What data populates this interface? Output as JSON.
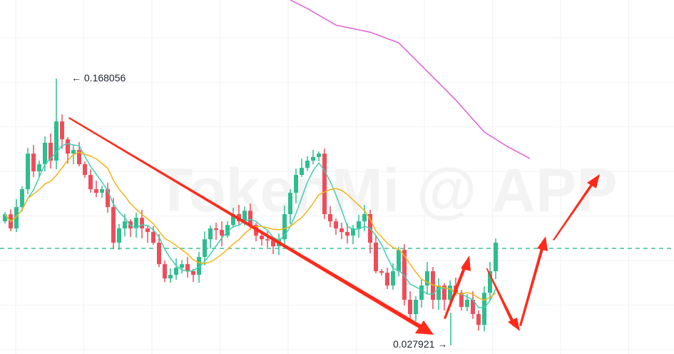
{
  "chart_data": {
    "type": "candlestick",
    "watermark": "TokenMi @ APP",
    "first_open": 0.093,
    "close": [
      0.0967,
      0.0893,
      0.1005,
      0.1099,
      0.1286,
      0.1193,
      0.123,
      0.1343,
      0.1249,
      0.1455,
      0.1361,
      0.1286,
      0.1305,
      0.123,
      0.1174,
      0.1099,
      0.108,
      0.1099,
      0.1005,
      0.0818,
      0.0893,
      0.093,
      0.0893,
      0.0949,
      0.0893,
      0.0874,
      0.0818,
      0.0705,
      0.063,
      0.0649,
      0.0686,
      0.0705,
      0.0668,
      0.0649,
      0.0743,
      0.0836,
      0.0893,
      0.0885,
      0.0855,
      0.0911,
      0.0968,
      0.093,
      0.0986,
      0.0911,
      0.0855,
      0.0836,
      0.083,
      0.0799,
      0.0836,
      0.0968,
      0.108,
      0.1174,
      0.1211,
      0.1249,
      0.1268,
      0.1286,
      0.0968,
      0.093,
      0.0893,
      0.0874,
      0.0855,
      0.0893,
      0.093,
      0.0968,
      0.0818,
      0.0668,
      0.066,
      0.0593,
      0.0668,
      0.078,
      0.0518,
      0.0443,
      0.0518,
      0.0593,
      0.0668,
      0.0518,
      0.0593,
      0.0518,
      0.0593,
      0.0555,
      0.048,
      0.0518,
      0.0443,
      0.0386,
      0.0555,
      0.0668,
      0.0818
    ],
    "high_marker": {
      "label": "0.168056",
      "value": 0.168056
    },
    "low_marker": {
      "label": "0.027921",
      "value": 0.027921
    },
    "current_price_line": 0.0788,
    "moving_averages": [
      {
        "period": 5,
        "color": "#3fd0b0"
      },
      {
        "period": 10,
        "color": "#f5b316"
      }
    ],
    "long_ma": {
      "color": "#e05ad6",
      "points": [
        [
          50,
          0.2093
        ],
        [
          53,
          0.2048
        ],
        [
          58,
          0.1961
        ],
        [
          64,
          0.1924
        ],
        [
          69,
          0.1868
        ],
        [
          74,
          0.1718
        ],
        [
          79,
          0.1568
        ],
        [
          84,
          0.1399
        ],
        [
          88,
          0.1324
        ],
        [
          92,
          0.126
        ]
      ]
    },
    "colors": {
      "up": "#2ebd8f",
      "down": "#ef4d5a",
      "annotation": "#ff2a1a",
      "grid": "#f2f2f2"
    },
    "grid": true
  }
}
